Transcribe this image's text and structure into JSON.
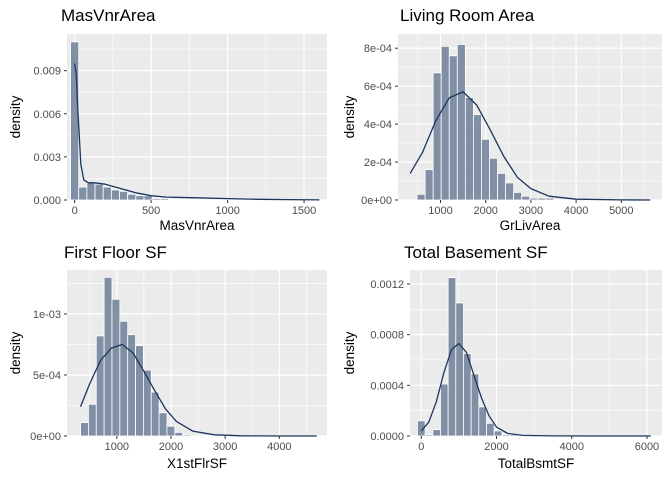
{
  "chart_data": [
    {
      "type": "bar",
      "title": "MasVnrArea",
      "xlabel": "MasVnrArea",
      "ylabel": "density",
      "xlim": [
        -50,
        1650
      ],
      "ylim": [
        0,
        0.01155
      ],
      "xticks": [
        0,
        500,
        1000,
        1500
      ],
      "xtick_labels": [
        "0",
        "500",
        "1000",
        "1500"
      ],
      "yticks": [
        0,
        0.003,
        0.006,
        0.009
      ],
      "ytick_labels": [
        "0.000",
        "0.003",
        "0.006",
        "0.009"
      ],
      "bin_width": 53.3,
      "bins_x": [
        0,
        53.3,
        106.7,
        160,
        213.3,
        266.7,
        320,
        373.3,
        426.7,
        480,
        533.3,
        586.7,
        640,
        693.3,
        746.7,
        800
      ],
      "bins_density": [
        0.011,
        0.0009,
        0.0012,
        0.0011,
        0.0009,
        0.0007,
        0.0006,
        0.0004,
        0.0003,
        0.0003,
        0.0001,
        0.0001,
        5e-05,
        4e-05,
        3e-05,
        2e-05
      ],
      "density_x": [
        0,
        10,
        20,
        40,
        60,
        90,
        130,
        200,
        300,
        400,
        500,
        600,
        800,
        1000,
        1200,
        1400,
        1600
      ],
      "density_y": [
        0.0095,
        0.0088,
        0.0065,
        0.0025,
        0.0014,
        0.0012,
        0.0012,
        0.0011,
        0.0008,
        0.0005,
        0.0003,
        0.0002,
        0.00015,
        0.0001,
        5e-05,
        3e-05,
        1e-05
      ],
      "bar_color": "#6e7f99",
      "line_color": "#1b365d",
      "grid": true
    },
    {
      "type": "bar",
      "title": "Living Room Area",
      "xlabel": "GrLivArea",
      "ylabel": "density",
      "xlim": [
        60,
        5900
      ],
      "ylim": [
        0,
        0.000875
      ],
      "xticks": [
        1000,
        2000,
        3000,
        4000,
        5000
      ],
      "xtick_labels": [
        "1000",
        "2000",
        "3000",
        "4000",
        "5000"
      ],
      "yticks": [
        0,
        0.0002,
        0.0004,
        0.0006,
        0.0008
      ],
      "ytick_labels": [
        "0e+00",
        "2e-04",
        "4e-04",
        "6e-04",
        "8e-04"
      ],
      "bin_width": 178,
      "bins_x": [
        571,
        749,
        927,
        1105,
        1283,
        1461,
        1639,
        1817,
        1995,
        2173,
        2351,
        2529,
        2707,
        2885,
        3063,
        3241,
        3419
      ],
      "bins_density": [
        3e-05,
        0.00016,
        0.00067,
        0.00081,
        0.00076,
        0.00082,
        0.00054,
        0.00045,
        0.00032,
        0.00022,
        0.00014,
        9e-05,
        4e-05,
        2e-05,
        1e-05,
        1e-05,
        1e-05
      ],
      "density_x": [
        330,
        600,
        900,
        1200,
        1500,
        1800,
        2100,
        2400,
        2700,
        3000,
        3400,
        4000,
        5000,
        5640
      ],
      "density_y": [
        0.00014,
        0.00025,
        0.00042,
        0.00054,
        0.00057,
        0.0005,
        0.00037,
        0.00023,
        0.00012,
        6e-05,
        2e-05,
        4e-06,
        5e-07,
        1e-07
      ],
      "bar_color": "#6e7f99",
      "line_color": "#1b365d",
      "grid": true
    },
    {
      "type": "bar",
      "title": "First Floor SF",
      "xlabel": "X1stFlrSF",
      "ylabel": "density",
      "xlim": [
        80,
        4880
      ],
      "ylim": [
        0,
        0.00136
      ],
      "xticks": [
        1000,
        2000,
        3000,
        4000
      ],
      "xtick_labels": [
        "1000",
        "2000",
        "3000",
        "4000"
      ],
      "yticks": [
        0,
        0.0005,
        0.001
      ],
      "ytick_labels": [
        "0e+00",
        "5e-04",
        "1e-03"
      ],
      "bin_width": 145,
      "bins_x": [
        403,
        548,
        693,
        838,
        983,
        1128,
        1273,
        1418,
        1563,
        1708,
        1853,
        1998,
        2143,
        2288
      ],
      "bins_density": [
        0.00011,
        0.00026,
        0.00082,
        0.0013,
        0.00112,
        0.00094,
        0.00083,
        0.00074,
        0.00054,
        0.00036,
        0.00019,
        8e-05,
        3e-05,
        1e-05
      ],
      "density_x": [
        330,
        500,
        700,
        900,
        1100,
        1300,
        1500,
        1700,
        1900,
        2100,
        2400,
        2800,
        3300,
        4000,
        4690
      ],
      "density_y": [
        0.00024,
        0.00043,
        0.00062,
        0.00072,
        0.00075,
        0.00068,
        0.00053,
        0.00037,
        0.00022,
        0.00012,
        4e-05,
        1e-05,
        2e-06,
        3e-07,
        1e-07
      ],
      "bar_color": "#6e7f99",
      "line_color": "#1b365d",
      "grid": true
    },
    {
      "type": "bar",
      "title": "Total Basement SF",
      "xlabel": "TotalBsmtSF",
      "ylabel": "density",
      "xlim": [
        -300,
        6400
      ],
      "ylim": [
        0,
        0.00131
      ],
      "xticks": [
        0,
        2000,
        4000,
        6000
      ],
      "xtick_labels": [
        "0",
        "2000",
        "4000",
        "6000"
      ],
      "yticks": [
        0,
        0.0004,
        0.0008,
        0.0012
      ],
      "ytick_labels": [
        "0.0000",
        "0.0004",
        "0.0008",
        "0.0012"
      ],
      "bin_width": 204,
      "bins_x": [
        0,
        204,
        408,
        612,
        816,
        1020,
        1224,
        1428,
        1632,
        1836,
        2040,
        2244,
        2448
      ],
      "bins_density": [
        0.00012,
        1e-05,
        5e-05,
        0.00041,
        0.00125,
        0.00105,
        0.00065,
        0.00049,
        0.00023,
        0.0001,
        4e-05,
        1e-05,
        1e-05
      ],
      "density_x": [
        0,
        200,
        400,
        600,
        800,
        1000,
        1200,
        1400,
        1600,
        1800,
        2000,
        2300,
        2700,
        3500,
        4500,
        6100
      ],
      "density_y": [
        4e-05,
        0.00011,
        0.00027,
        0.0005,
        0.00068,
        0.00073,
        0.00066,
        0.00048,
        0.0003,
        0.00016,
        7e-05,
        2e-05,
        5e-06,
        1e-06,
        2e-07,
        1e-07
      ],
      "bar_color": "#6e7f99",
      "line_color": "#1b365d",
      "grid": true
    }
  ]
}
